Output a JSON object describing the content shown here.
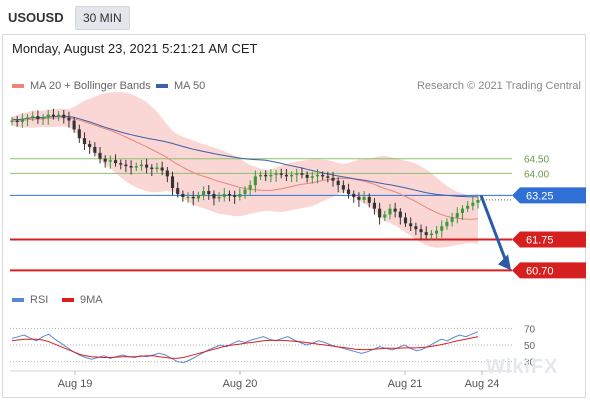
{
  "header": {
    "symbol": "USOUSD",
    "timeframe": "30 MIN",
    "datetime": "Monday, August 23, 2021 5:21:21 AM CET"
  },
  "legend": {
    "ma20_bb": "MA 20 + Bollinger Bands",
    "ma50": "MA 50",
    "credit": "Research © 2021 Trading Central",
    "rsi": "RSI",
    "ma9": "9MA"
  },
  "watermark": "WikiFX",
  "colors": {
    "bb_band": "#f5b7b1",
    "ma20": "#e8867c",
    "ma50": "#3d5fa8",
    "up_candle": "#3a9a3a",
    "down_candle": "#333333",
    "resistance": "#8cc06a",
    "pivot": "#2f6fd6",
    "support": "#d62020",
    "arrow": "#2b5aa6",
    "rsi_line": "#5b86d6",
    "ma9_line": "#d62020"
  },
  "chart_data": [
    {
      "type": "candlestick",
      "title": "USOUSD",
      "x_labels": [
        "Aug 19",
        "Aug 20",
        "Aug 21",
        "Aug 24"
      ],
      "ylim": [
        60.2,
        66.5
      ],
      "levels": [
        {
          "value": 64.5,
          "label": "64.50",
          "role": "resistance"
        },
        {
          "value": 64.0,
          "label": "64.00",
          "role": "resistance"
        },
        {
          "value": 63.25,
          "label": "63.25",
          "role": "pivot"
        },
        {
          "value": 61.75,
          "label": "61.75",
          "role": "support"
        },
        {
          "value": 60.7,
          "label": "60.70",
          "role": "support"
        }
      ],
      "projection": {
        "from": 63.25,
        "to": 60.7,
        "direction": "down"
      },
      "series": [
        {
          "name": "MA 20 + Bollinger Bands"
        },
        {
          "name": "MA 50"
        }
      ],
      "close": [
        65.8,
        65.75,
        65.85,
        65.9,
        65.95,
        65.85,
        65.9,
        66.0,
        65.95,
        66.0,
        65.9,
        65.8,
        65.5,
        65.2,
        65.0,
        64.9,
        64.7,
        64.5,
        64.4,
        64.45,
        64.35,
        64.3,
        64.25,
        64.2,
        64.25,
        64.3,
        64.2,
        64.15,
        64.2,
        64.1,
        63.9,
        63.5,
        63.3,
        63.2,
        63.2,
        63.15,
        63.25,
        63.4,
        63.3,
        63.15,
        63.2,
        63.3,
        63.25,
        63.2,
        63.3,
        63.45,
        63.6,
        63.9,
        63.95,
        63.9,
        63.95,
        64.0,
        63.95,
        63.9,
        63.95,
        64.0,
        63.95,
        63.85,
        63.9,
        63.95,
        63.9,
        63.85,
        63.75,
        63.6,
        63.45,
        63.3,
        63.2,
        63.1,
        63.2,
        63.0,
        62.8,
        62.5,
        62.6,
        62.8,
        62.7,
        62.5,
        62.3,
        62.2,
        62.1,
        62.0,
        61.9,
        61.95,
        62.05,
        62.2,
        62.35,
        62.5,
        62.65,
        62.8,
        62.9,
        63.0,
        63.1
      ]
    },
    {
      "type": "line",
      "title": "RSI",
      "yticks": [
        30,
        50,
        70
      ],
      "ylim": [
        20,
        80
      ],
      "series": [
        {
          "name": "RSI",
          "values": [
            58,
            60,
            62,
            58,
            55,
            60,
            63,
            57,
            52,
            47,
            42,
            38,
            35,
            33,
            35,
            37,
            34,
            36,
            38,
            36,
            35,
            37,
            36,
            38,
            40,
            38,
            34,
            30,
            29,
            32,
            36,
            40,
            44,
            47,
            50,
            48,
            52,
            55,
            53,
            56,
            58,
            60,
            57,
            55,
            58,
            60,
            56,
            53,
            50,
            52,
            55,
            53,
            50,
            48,
            46,
            44,
            42,
            40,
            42,
            45,
            48,
            46,
            44,
            47,
            50,
            46,
            43,
            45,
            49,
            53,
            57,
            55,
            59,
            62,
            60,
            63,
            66
          ]
        },
        {
          "name": "9MA",
          "values": [
            55,
            56,
            57,
            57,
            57,
            56,
            54,
            51,
            48,
            45,
            42,
            39,
            37,
            36,
            35.5,
            35,
            35,
            35.5,
            36,
            36,
            36,
            36.5,
            37,
            37,
            36,
            35,
            34,
            34,
            35,
            37,
            39,
            41,
            43,
            45,
            47,
            49,
            50,
            51,
            52,
            53,
            54,
            55,
            55.5,
            55.5,
            55.5,
            55,
            54.5,
            54,
            53,
            52,
            51,
            50,
            49,
            48,
            47,
            46,
            45,
            44.5,
            44.5,
            45,
            45.5,
            46,
            46,
            46,
            46.5,
            46.5,
            46.5,
            47,
            48,
            49,
            50.5,
            52,
            54,
            55.5,
            57,
            58.5,
            60
          ]
        }
      ]
    }
  ]
}
